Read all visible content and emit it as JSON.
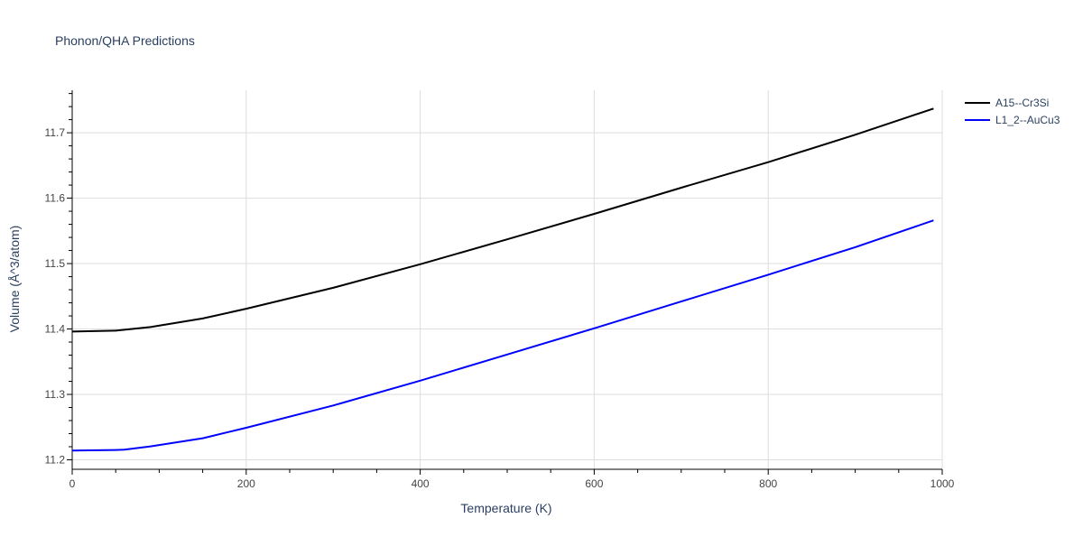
{
  "chart_data": {
    "type": "line",
    "title": "Phonon/QHA Predictions",
    "xlabel": "Temperature (K)",
    "ylabel": "Volume (Å^3/atom)",
    "xlim": [
      0,
      1000
    ],
    "ylim": [
      11.1855,
      11.765
    ],
    "xticks": [
      0,
      200,
      400,
      600,
      800,
      1000
    ],
    "yticks": [
      11.2,
      11.3,
      11.4,
      11.5,
      11.6,
      11.7
    ],
    "xtick_labels": [
      "0",
      "200",
      "400",
      "600",
      "800",
      "1000"
    ],
    "ytick_labels": [
      "11.2",
      "11.3",
      "11.4",
      "11.5",
      "11.6",
      "11.7"
    ],
    "grid": true,
    "legend_position": "top-right",
    "series": [
      {
        "name": "A15--Cr3Si",
        "color": "#000000",
        "x": [
          0,
          50,
          90,
          150,
          200,
          300,
          400,
          500,
          600,
          700,
          800,
          900,
          990
        ],
        "y": [
          11.396,
          11.3975,
          11.403,
          11.416,
          11.431,
          11.463,
          11.499,
          11.537,
          11.576,
          11.616,
          11.655,
          11.697,
          11.737
        ]
      },
      {
        "name": "L1_2--AuCu3",
        "color": "#0000ff",
        "x": [
          0,
          50,
          60,
          90,
          150,
          200,
          300,
          400,
          500,
          600,
          700,
          800,
          900,
          990
        ],
        "y": [
          11.214,
          11.215,
          11.2155,
          11.2205,
          11.233,
          11.249,
          11.283,
          11.321,
          11.361,
          11.401,
          11.442,
          11.483,
          11.525,
          11.566
        ]
      }
    ]
  }
}
